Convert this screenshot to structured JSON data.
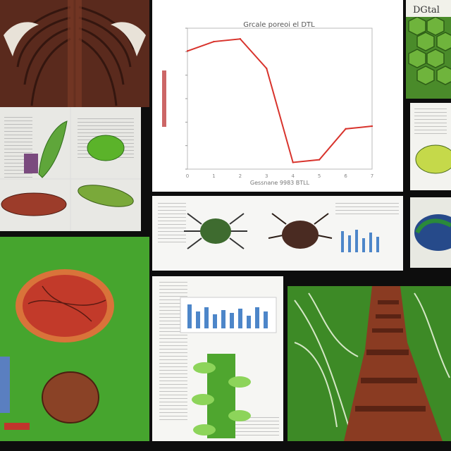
{
  "collage": {
    "line_panel": {
      "title": "Grcale poreoi el DTL",
      "xlabel": "Gessnane 9983 BTLL"
    },
    "top_right_label": "DGtal",
    "colors": {
      "leaf_green": "#4fa62f",
      "dark_green": "#2e6e1e",
      "insect_red": "#c23a2a",
      "bark_brown": "#7a3b22",
      "chart_line": "#d8332c",
      "bar_blue": "#4d86c9"
    }
  },
  "chart_data": {
    "type": "line",
    "title": "Grcale poreoi el DTL",
    "xlabel": "Gessnane 9983 BTLL",
    "ylabel": "",
    "x": [
      0,
      1,
      2,
      3,
      4,
      5,
      6,
      7
    ],
    "y": [
      0.88,
      0.95,
      0.97,
      0.75,
      0.05,
      0.07,
      0.3,
      0.32
    ],
    "ylim": [
      0,
      1.05
    ],
    "grid": false
  }
}
